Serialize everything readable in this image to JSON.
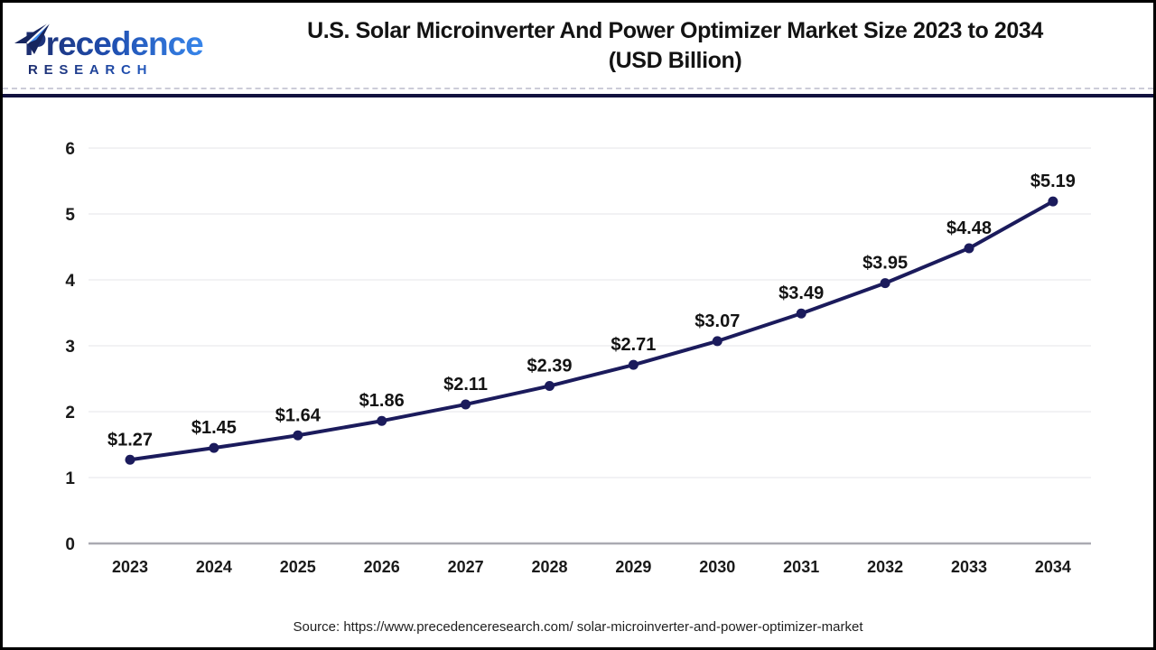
{
  "logo": {
    "brand": "Precedence",
    "subtitle": "RESEARCH",
    "icon": "paper-plane-icon"
  },
  "header": {
    "title_line1": "U.S. Solar Microinverter And Power Optimizer Market Size 2023 to 2034",
    "title_line2": "(USD Billion)"
  },
  "footer": {
    "source": "Source: https://www.precedenceresearch.com/ solar-microinverter-and-power-optimizer-market"
  },
  "colors": {
    "series_line": "#1b1b5c",
    "data_point": "#1b1b5c",
    "data_label": "#131313",
    "axis_label": "#1a1a1a",
    "gridline": "#e9e9ed",
    "baseline": "#aaaab2",
    "header_separator": "#12123f",
    "logo_dark": "#1d2d6e",
    "logo_light": "#3b8df2"
  },
  "chart_data": {
    "type": "line",
    "title": "U.S. Solar Microinverter And Power Optimizer Market Size 2023 to 2034 (USD Billion)",
    "xlabel": "",
    "ylabel": "",
    "categories": [
      "2023",
      "2024",
      "2025",
      "2026",
      "2027",
      "2028",
      "2029",
      "2030",
      "2031",
      "2032",
      "2033",
      "2034"
    ],
    "values": [
      1.27,
      1.45,
      1.64,
      1.86,
      2.11,
      2.39,
      2.71,
      3.07,
      3.49,
      3.95,
      4.48,
      5.19
    ],
    "point_labels": [
      "$1.27",
      "$1.45",
      "$1.64",
      "$1.86",
      "$2.11",
      "$2.39",
      "$2.71",
      "$3.07",
      "$3.49",
      "$3.95",
      "$4.48",
      "$5.19"
    ],
    "ylim": [
      0,
      6
    ],
    "yticks": [
      0,
      1,
      2,
      3,
      4,
      5,
      6
    ],
    "grid": true,
    "legend": "none"
  }
}
